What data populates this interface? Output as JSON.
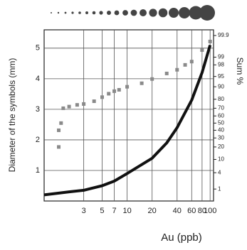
{
  "chart_data": {
    "type": "line",
    "x_label": "Au (ppb)",
    "y_label": "Diameter of the symbols (mm)",
    "y2_label": "Sum %",
    "xscale": "log",
    "y2scale": "probability",
    "grid": true,
    "xlim": [
      1,
      110
    ],
    "xticks": [
      3,
      5,
      7,
      10,
      20,
      40,
      60,
      80,
      100
    ],
    "ylim": [
      0,
      5.6
    ],
    "yticks": [
      1,
      2,
      3,
      4,
      5
    ],
    "y2lim": [
      0.3,
      99.95
    ],
    "y2ticks": [
      1,
      4,
      10,
      20,
      30,
      40,
      50,
      60,
      70,
      80,
      90,
      95,
      98,
      99,
      99.9
    ],
    "series": [
      {
        "name": "Diameter",
        "color": "#111111",
        "style": "line",
        "x": [
          1,
          2,
          3,
          5,
          7,
          10,
          20,
          30,
          40,
          60,
          80,
          100
        ],
        "values": [
          0.2,
          0.3,
          0.35,
          0.5,
          0.65,
          0.9,
          1.4,
          1.9,
          2.4,
          3.3,
          4.2,
          5.1
        ]
      },
      {
        "name": "Sum",
        "color": "#8a8a8a",
        "style": "points",
        "axis": "y2",
        "x": [
          1.5,
          1.5,
          1.6,
          1.7,
          2,
          2.5,
          3,
          4,
          5,
          6,
          7,
          8,
          10,
          15,
          20,
          30,
          40,
          50,
          60,
          80,
          100
        ],
        "values": [
          20,
          40,
          50,
          70,
          72,
          74,
          75,
          78,
          82,
          85,
          87,
          88,
          90,
          92,
          94,
          96,
          97,
          98,
          98.5,
          99.5,
          99.8
        ]
      }
    ]
  }
}
